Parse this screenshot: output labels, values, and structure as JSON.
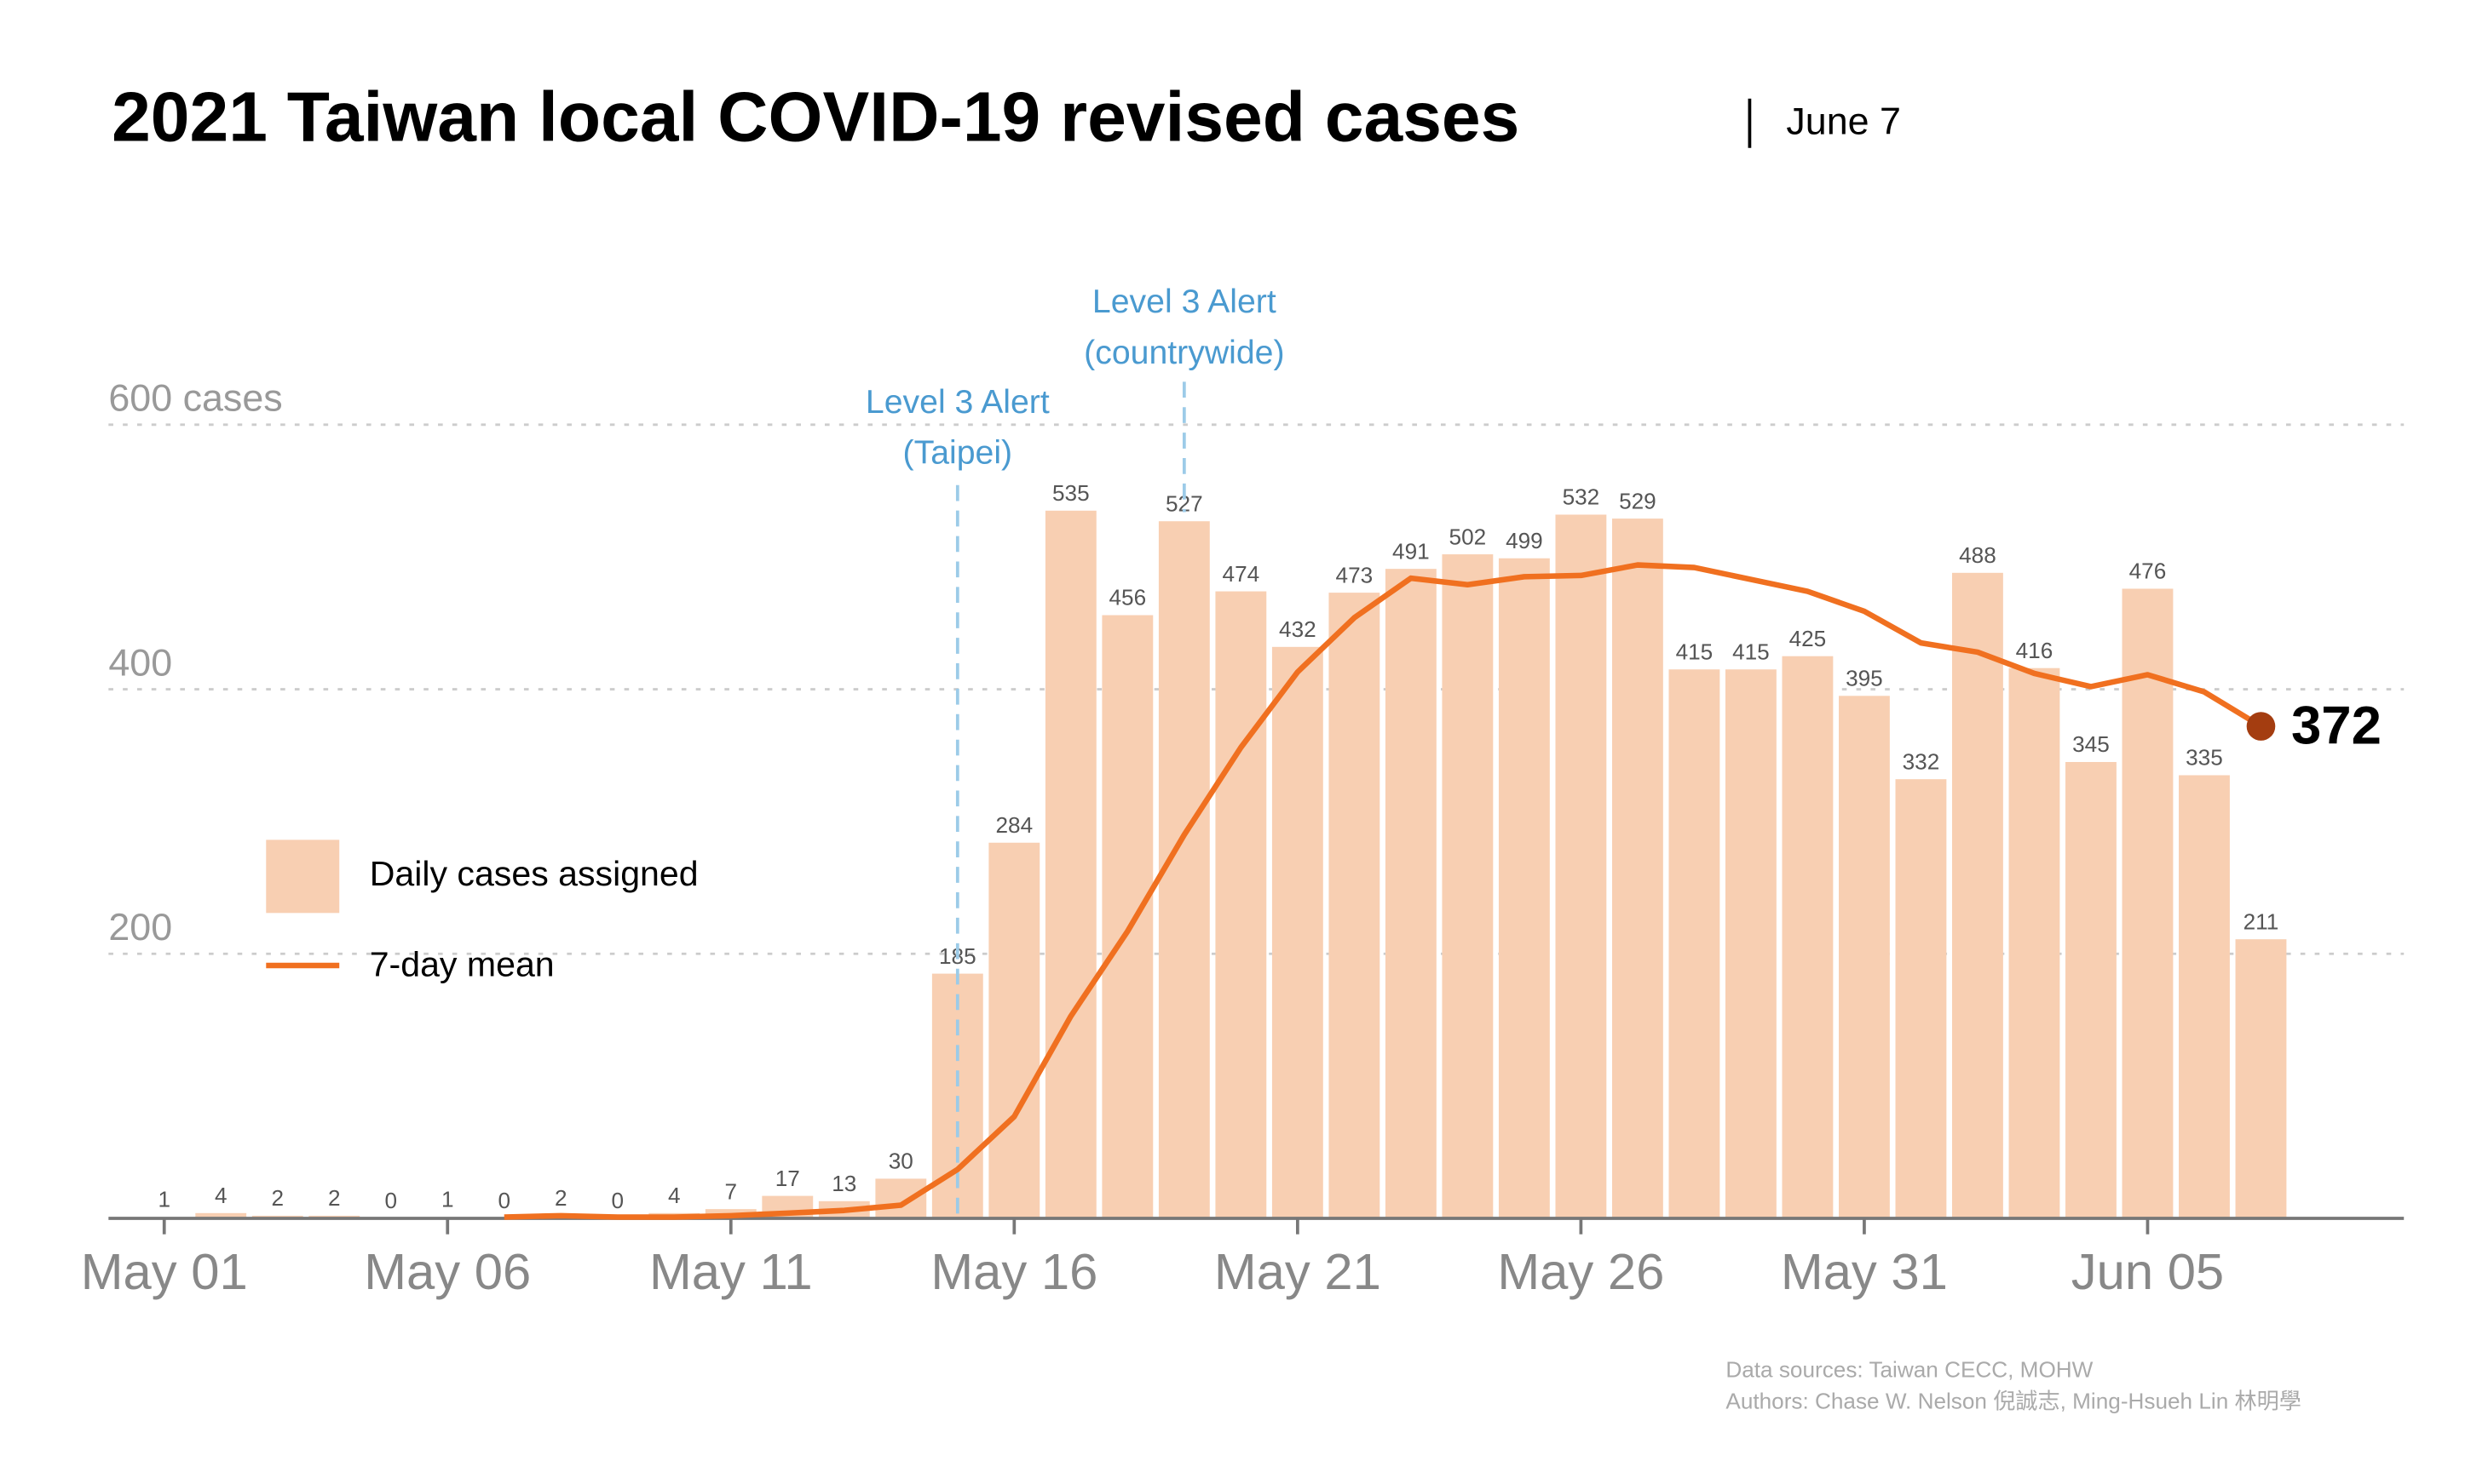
{
  "chart_data": {
    "type": "bar",
    "title": "2021 Taiwan local COVID-19 revised cases",
    "subtitle": "June 7",
    "categories": [
      "May 01",
      null,
      null,
      null,
      null,
      "May 06",
      null,
      null,
      null,
      null,
      "May 11",
      null,
      null,
      null,
      null,
      "May 16",
      null,
      null,
      null,
      null,
      "May 21",
      null,
      null,
      null,
      null,
      "May 26",
      null,
      null,
      null,
      null,
      "May 31",
      null,
      null,
      null,
      null,
      "Jun 05",
      null,
      null
    ],
    "series": [
      {
        "name": "Daily cases assigned",
        "color": "#f8cfb2",
        "values": [
          1,
          4,
          2,
          2,
          0,
          1,
          0,
          2,
          0,
          4,
          7,
          17,
          13,
          30,
          185,
          284,
          535,
          456,
          527,
          474,
          432,
          473,
          491,
          502,
          499,
          532,
          529,
          415,
          415,
          425,
          395,
          332,
          488,
          416,
          345,
          476,
          335,
          211
        ]
      },
      {
        "name": "7-day mean",
        "type": "line",
        "color": "#f07020",
        "end_color": "#a43d10",
        "values": [
          null,
          null,
          null,
          null,
          null,
          null,
          1,
          2,
          1,
          1,
          2,
          4,
          6,
          10,
          37,
          77,
          153,
          217,
          290,
          356,
          413,
          454,
          484,
          479,
          485,
          486,
          494,
          492,
          483,
          474,
          459,
          435,
          428,
          412,
          402,
          411,
          398,
          372
        ]
      }
    ],
    "ylim": [
      0,
      600
    ],
    "yticks": [
      200,
      400,
      {
        "value": 600,
        "label": "600 cases"
      }
    ],
    "grid": true,
    "annotations": [
      {
        "lines": [
          "Level 3 Alert",
          "(Taipei)"
        ],
        "color": "#4a9ad0"
      },
      {
        "lines": [
          "Level 3 Alert",
          "(countrywide)"
        ],
        "color": "#4a9ad0"
      }
    ],
    "footer": [
      "Data sources: Taiwan CECC, MOHW",
      "Authors: Chase W. Nelson 倪誠志, Ming-Hsueh Lin 林明學"
    ]
  }
}
